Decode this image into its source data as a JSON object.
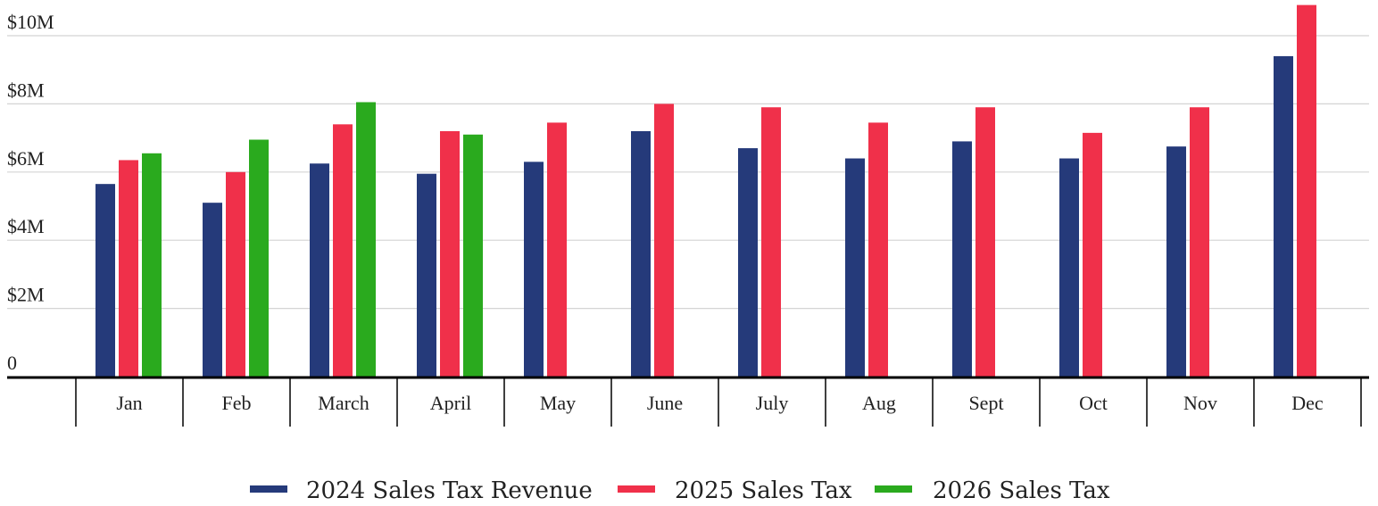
{
  "chart_data": {
    "type": "bar",
    "categories": [
      "Jan",
      "Feb",
      "March",
      "April",
      "May",
      "June",
      "July",
      "Aug",
      "Sept",
      "Oct",
      "Nov",
      "Dec"
    ],
    "series": [
      {
        "name": "2024 Sales Tax Revenue",
        "color": "#253a7a",
        "values": [
          5.65,
          5.1,
          6.25,
          5.95,
          6.3,
          7.2,
          6.7,
          6.4,
          6.9,
          6.4,
          6.75,
          9.4
        ]
      },
      {
        "name": "2025 Sales Tax",
        "color": "#f0304a",
        "values": [
          6.35,
          6.0,
          7.4,
          7.2,
          7.45,
          8.0,
          7.9,
          7.45,
          7.9,
          7.15,
          7.9,
          10.9
        ]
      },
      {
        "name": "2026 Sales Tax",
        "color": "#2aaa1e",
        "values": [
          6.55,
          6.95,
          8.05,
          7.1,
          null,
          null,
          null,
          null,
          null,
          null,
          null,
          null
        ]
      }
    ],
    "y_ticks": [
      {
        "value": 0,
        "label": "0"
      },
      {
        "value": 2,
        "label": "$2M"
      },
      {
        "value": 4,
        "label": "$4M"
      },
      {
        "value": 6,
        "label": "$6M"
      },
      {
        "value": 8,
        "label": "$8M"
      },
      {
        "value": 10,
        "label": "$10M"
      }
    ],
    "ylim": [
      0,
      11
    ],
    "grid": true,
    "legend": "bottom"
  }
}
